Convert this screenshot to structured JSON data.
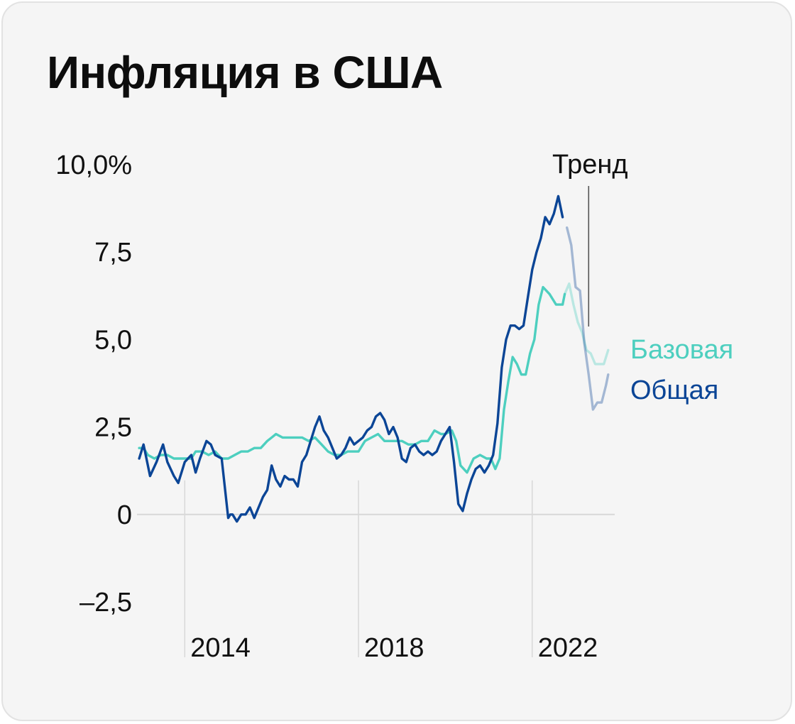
{
  "title": "Инфляция в США",
  "chart_data": {
    "type": "line",
    "xlabel": "",
    "ylabel": "",
    "x_range": [
      2012.9,
      2023.9
    ],
    "ylim": [
      -2.5,
      10.0
    ],
    "y_ticks": [
      {
        "value": 10.0,
        "label": "10,0%"
      },
      {
        "value": 7.5,
        "label": "7,5"
      },
      {
        "value": 5.0,
        "label": "5,0"
      },
      {
        "value": 2.5,
        "label": "2,5"
      },
      {
        "value": 0,
        "label": "0"
      },
      {
        "value": -2.5,
        "label": "–2,5"
      }
    ],
    "x_ticks": [
      {
        "value": 2014,
        "label": "2014"
      },
      {
        "value": 2018,
        "label": "2018"
      },
      {
        "value": 2022,
        "label": "2022"
      }
    ],
    "trend_start": 2022.75,
    "annotation": {
      "label": "Тренд",
      "x": 2023.3
    },
    "colors": {
      "Базовая": "#4dcfbf",
      "Общая": "#0b4596",
      "baseline": "#d8d8d8",
      "trend_marker": "#555555"
    },
    "legend": "right",
    "series": [
      {
        "name": "Базовая",
        "color": "#4dcfbf",
        "x": [
          2012.95,
          2013.05,
          2013.15,
          2013.3,
          2013.45,
          2013.6,
          2013.75,
          2013.9,
          2014.0,
          2014.15,
          2014.25,
          2014.4,
          2014.55,
          2014.7,
          2014.85,
          2015.0,
          2015.15,
          2015.3,
          2015.45,
          2015.6,
          2015.75,
          2015.9,
          2016.0,
          2016.1,
          2016.25,
          2016.4,
          2016.55,
          2016.7,
          2016.85,
          2017.0,
          2017.15,
          2017.3,
          2017.45,
          2017.6,
          2017.75,
          2017.9,
          2018.0,
          2018.15,
          2018.3,
          2018.45,
          2018.6,
          2018.75,
          2018.9,
          2019.0,
          2019.15,
          2019.3,
          2019.45,
          2019.6,
          2019.75,
          2019.9,
          2020.0,
          2020.15,
          2020.25,
          2020.35,
          2020.5,
          2020.65,
          2020.8,
          2020.95,
          2021.05,
          2021.15,
          2021.25,
          2021.35,
          2021.45,
          2021.55,
          2021.65,
          2021.75,
          2021.85,
          2021.95,
          2022.05,
          2022.15,
          2022.25,
          2022.4,
          2022.55,
          2022.7,
          2022.75,
          2022.85,
          2022.95,
          2023.05,
          2023.15,
          2023.25,
          2023.35,
          2023.45,
          2023.55,
          2023.65,
          2023.75
        ],
        "y": [
          1.9,
          1.9,
          1.7,
          1.6,
          1.7,
          1.7,
          1.6,
          1.6,
          1.6,
          1.6,
          1.8,
          1.8,
          1.7,
          1.8,
          1.6,
          1.6,
          1.7,
          1.8,
          1.8,
          1.9,
          1.9,
          2.1,
          2.2,
          2.3,
          2.2,
          2.2,
          2.2,
          2.2,
          2.1,
          2.2,
          2.0,
          1.8,
          1.7,
          1.7,
          1.8,
          1.8,
          1.8,
          2.1,
          2.2,
          2.3,
          2.1,
          2.1,
          2.1,
          2.1,
          2.0,
          2.0,
          2.1,
          2.1,
          2.4,
          2.3,
          2.3,
          2.4,
          2.1,
          1.4,
          1.2,
          1.6,
          1.7,
          1.6,
          1.6,
          1.3,
          1.6,
          3.0,
          3.8,
          4.5,
          4.3,
          4.0,
          4.0,
          4.6,
          5.0,
          6.0,
          6.5,
          6.3,
          6.0,
          6.0,
          6.3,
          6.6,
          6.0,
          5.5,
          5.2,
          4.7,
          4.6,
          4.3,
          4.3,
          4.3,
          4.7
        ]
      },
      {
        "name": "Общая",
        "color": "#0b4596",
        "x": [
          2012.95,
          2013.05,
          2013.2,
          2013.35,
          2013.5,
          2013.6,
          2013.75,
          2013.85,
          2014.0,
          2014.15,
          2014.25,
          2014.35,
          2014.5,
          2014.6,
          2014.7,
          2014.85,
          2015.0,
          2015.05,
          2015.1,
          2015.2,
          2015.3,
          2015.4,
          2015.5,
          2015.6,
          2015.7,
          2015.8,
          2015.9,
          2016.0,
          2016.1,
          2016.2,
          2016.3,
          2016.4,
          2016.5,
          2016.6,
          2016.7,
          2016.8,
          2016.9,
          2017.0,
          2017.1,
          2017.2,
          2017.3,
          2017.4,
          2017.5,
          2017.6,
          2017.7,
          2017.8,
          2017.9,
          2018.0,
          2018.1,
          2018.2,
          2018.3,
          2018.4,
          2018.5,
          2018.6,
          2018.7,
          2018.8,
          2018.9,
          2019.0,
          2019.1,
          2019.2,
          2019.3,
          2019.4,
          2019.5,
          2019.6,
          2019.7,
          2019.8,
          2019.9,
          2020.0,
          2020.1,
          2020.2,
          2020.3,
          2020.4,
          2020.5,
          2020.6,
          2020.7,
          2020.8,
          2020.9,
          2021.0,
          2021.1,
          2021.2,
          2021.3,
          2021.4,
          2021.5,
          2021.6,
          2021.7,
          2021.8,
          2021.9,
          2022.0,
          2022.1,
          2022.2,
          2022.3,
          2022.4,
          2022.5,
          2022.6,
          2022.7,
          2022.8,
          2022.9,
          2023.0,
          2023.1,
          2023.2,
          2023.3,
          2023.4,
          2023.5,
          2023.6,
          2023.7,
          2023.75
        ],
        "y": [
          1.6,
          2.0,
          1.1,
          1.5,
          2.0,
          1.5,
          1.1,
          0.9,
          1.5,
          1.7,
          1.2,
          1.6,
          2.1,
          2.0,
          1.7,
          1.6,
          -0.1,
          0.0,
          0.0,
          -0.2,
          0.0,
          0.0,
          0.2,
          -0.1,
          0.2,
          0.5,
          0.7,
          1.4,
          1.0,
          0.8,
          1.1,
          1.0,
          1.0,
          0.8,
          1.5,
          1.7,
          2.1,
          2.5,
          2.8,
          2.4,
          2.2,
          1.9,
          1.6,
          1.7,
          1.9,
          2.2,
          2.0,
          2.1,
          2.2,
          2.4,
          2.5,
          2.8,
          2.9,
          2.7,
          2.3,
          2.5,
          2.2,
          1.6,
          1.5,
          1.9,
          2.0,
          1.8,
          1.7,
          1.8,
          1.7,
          1.8,
          2.1,
          2.3,
          2.5,
          1.5,
          0.3,
          0.1,
          0.6,
          1.0,
          1.3,
          1.4,
          1.2,
          1.4,
          1.7,
          2.6,
          4.2,
          5.0,
          5.4,
          5.4,
          5.3,
          5.4,
          6.2,
          7.0,
          7.5,
          7.9,
          8.5,
          8.3,
          8.6,
          9.1,
          8.5,
          8.2,
          7.7,
          6.5,
          6.4,
          4.9,
          4.0,
          3.0,
          3.2,
          3.2,
          3.7,
          4.0
        ]
      }
    ]
  }
}
